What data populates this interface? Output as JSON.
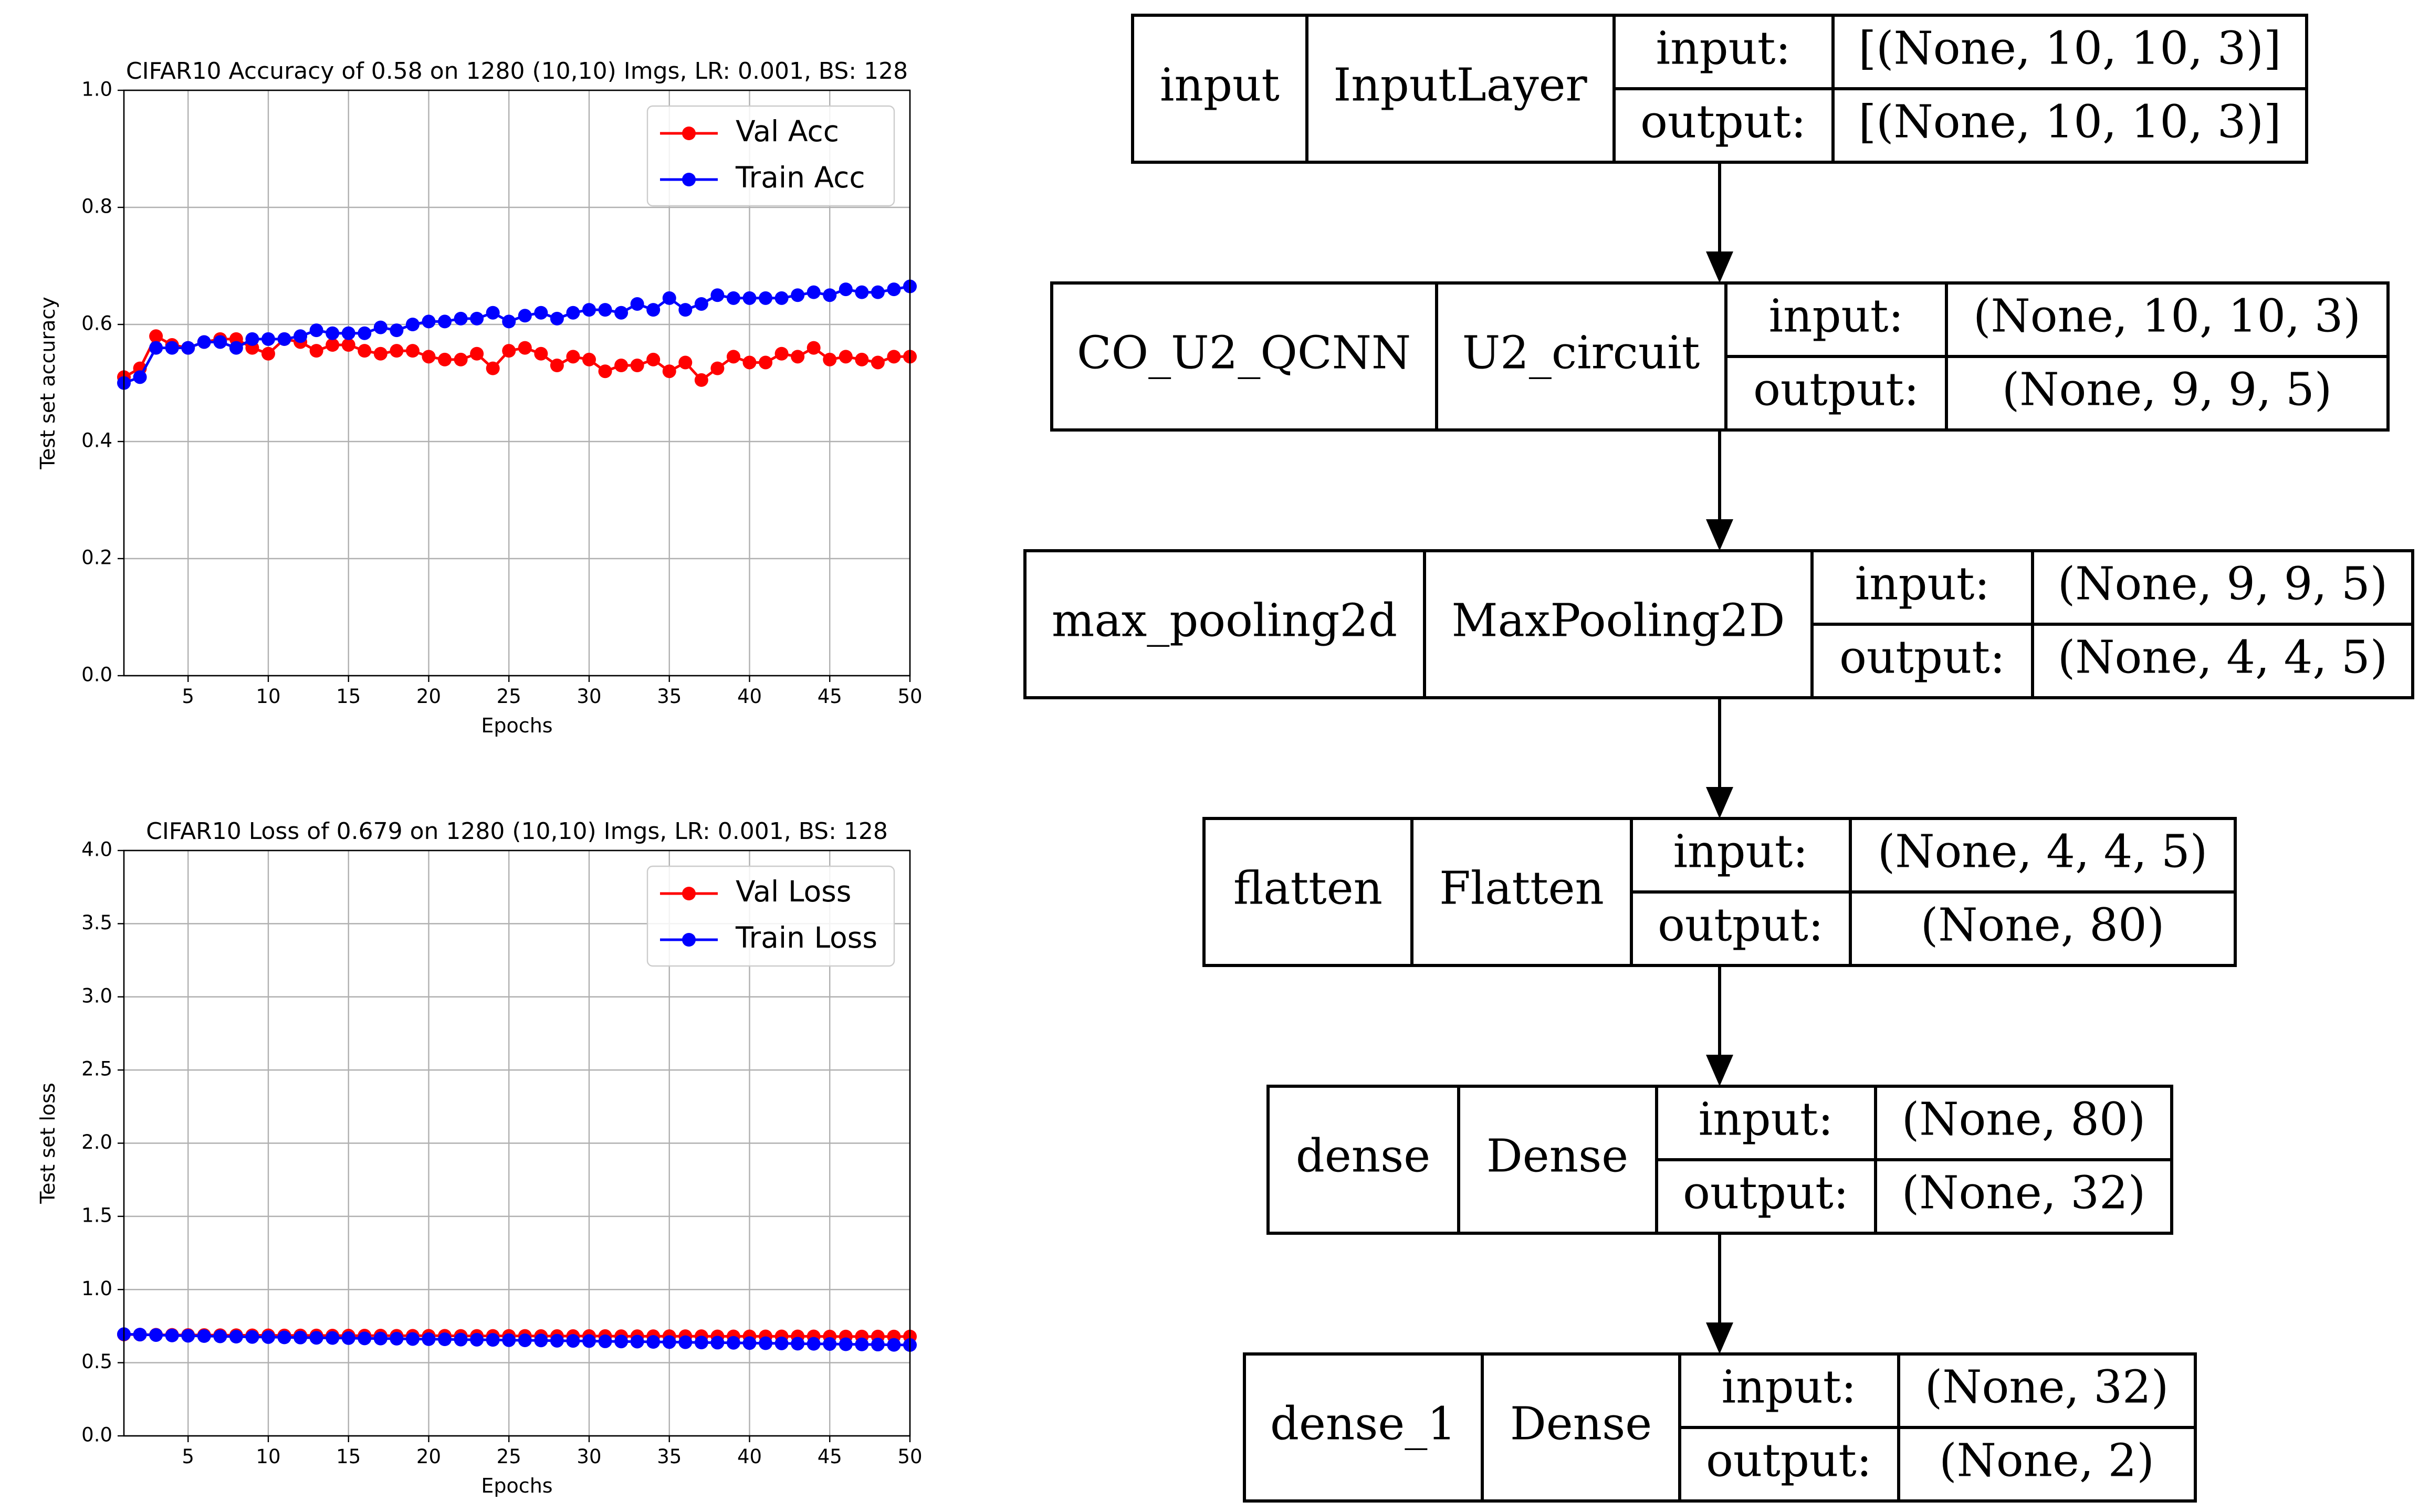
{
  "chart_data": [
    {
      "type": "line",
      "title": "CIFAR10 Accuracy of 0.58 on 1280 (10,10) Imgs, LR: 0.001, BS: 128",
      "xlabel": "Epochs",
      "ylabel": "Test set accuracy",
      "xlim": [
        1,
        50
      ],
      "ylim": [
        0.0,
        1.0
      ],
      "xticks": [
        5,
        10,
        15,
        20,
        25,
        30,
        35,
        40,
        45,
        50
      ],
      "yticks": [
        0.0,
        0.2,
        0.4,
        0.6,
        0.8,
        1.0
      ],
      "ytick_labels": [
        "0.0",
        "0.2",
        "0.4",
        "0.6",
        "0.8",
        "1.0"
      ],
      "grid": true,
      "legend_position": "top-right",
      "x": [
        1,
        2,
        3,
        4,
        5,
        6,
        7,
        8,
        9,
        10,
        11,
        12,
        13,
        14,
        15,
        16,
        17,
        18,
        19,
        20,
        21,
        22,
        23,
        24,
        25,
        26,
        27,
        28,
        29,
        30,
        31,
        32,
        33,
        34,
        35,
        36,
        37,
        38,
        39,
        40,
        41,
        42,
        43,
        44,
        45,
        46,
        47,
        48,
        49,
        50
      ],
      "series": [
        {
          "name": "Val Acc",
          "color": "#ff0000",
          "values": [
            0.51,
            0.525,
            0.58,
            0.565,
            0.56,
            0.57,
            0.575,
            0.575,
            0.56,
            0.55,
            0.575,
            0.57,
            0.555,
            0.565,
            0.565,
            0.555,
            0.55,
            0.555,
            0.555,
            0.545,
            0.54,
            0.54,
            0.55,
            0.525,
            0.555,
            0.56,
            0.55,
            0.53,
            0.545,
            0.54,
            0.52,
            0.53,
            0.53,
            0.54,
            0.52,
            0.535,
            0.505,
            0.525,
            0.545,
            0.535,
            0.535,
            0.55,
            0.545,
            0.56,
            0.54,
            0.545,
            0.54,
            0.535,
            0.545,
            0.545
          ]
        },
        {
          "name": "Train Acc",
          "color": "#0000ff",
          "values": [
            0.5,
            0.51,
            0.56,
            0.56,
            0.56,
            0.57,
            0.57,
            0.56,
            0.575,
            0.575,
            0.575,
            0.58,
            0.59,
            0.585,
            0.585,
            0.585,
            0.595,
            0.59,
            0.6,
            0.605,
            0.605,
            0.61,
            0.61,
            0.62,
            0.605,
            0.615,
            0.62,
            0.61,
            0.62,
            0.625,
            0.625,
            0.62,
            0.635,
            0.625,
            0.645,
            0.625,
            0.635,
            0.65,
            0.645,
            0.645,
            0.645,
            0.645,
            0.65,
            0.655,
            0.65,
            0.66,
            0.655,
            0.655,
            0.66,
            0.665
          ]
        }
      ]
    },
    {
      "type": "line",
      "title": "CIFAR10 Loss of 0.679 on 1280 (10,10) Imgs, LR: 0.001, BS: 128",
      "xlabel": "Epochs",
      "ylabel": "Test set loss",
      "xlim": [
        1,
        50
      ],
      "ylim": [
        0.0,
        4.0
      ],
      "xticks": [
        5,
        10,
        15,
        20,
        25,
        30,
        35,
        40,
        45,
        50
      ],
      "yticks": [
        0.0,
        0.5,
        1.0,
        1.5,
        2.0,
        2.5,
        3.0,
        3.5,
        4.0
      ],
      "ytick_labels": [
        "0.0",
        "0.5",
        "1.0",
        "1.5",
        "2.0",
        "2.5",
        "3.0",
        "3.5",
        "4.0"
      ],
      "grid": true,
      "legend_position": "top-right",
      "x": [
        1,
        2,
        3,
        4,
        5,
        6,
        7,
        8,
        9,
        10,
        11,
        12,
        13,
        14,
        15,
        16,
        17,
        18,
        19,
        20,
        21,
        22,
        23,
        24,
        25,
        26,
        27,
        28,
        29,
        30,
        31,
        32,
        33,
        34,
        35,
        36,
        37,
        38,
        39,
        40,
        41,
        42,
        43,
        44,
        45,
        46,
        47,
        48,
        49,
        50
      ],
      "series": [
        {
          "name": "Val Loss",
          "color": "#ff0000",
          "values": [
            0.693,
            0.692,
            0.691,
            0.69,
            0.689,
            0.689,
            0.688,
            0.688,
            0.687,
            0.687,
            0.686,
            0.686,
            0.686,
            0.685,
            0.685,
            0.685,
            0.685,
            0.684,
            0.684,
            0.684,
            0.684,
            0.683,
            0.683,
            0.683,
            0.683,
            0.683,
            0.682,
            0.682,
            0.682,
            0.682,
            0.682,
            0.681,
            0.681,
            0.681,
            0.681,
            0.681,
            0.681,
            0.68,
            0.68,
            0.68,
            0.68,
            0.68,
            0.68,
            0.68,
            0.679,
            0.679,
            0.679,
            0.679,
            0.679,
            0.679
          ]
        },
        {
          "name": "Train Loss",
          "color": "#0000ff",
          "values": [
            0.695,
            0.692,
            0.689,
            0.686,
            0.684,
            0.682,
            0.68,
            0.678,
            0.676,
            0.675,
            0.673,
            0.672,
            0.67,
            0.669,
            0.668,
            0.666,
            0.665,
            0.664,
            0.662,
            0.661,
            0.66,
            0.658,
            0.657,
            0.656,
            0.654,
            0.653,
            0.652,
            0.65,
            0.649,
            0.648,
            0.646,
            0.645,
            0.644,
            0.642,
            0.641,
            0.64,
            0.638,
            0.637,
            0.636,
            0.634,
            0.633,
            0.632,
            0.63,
            0.629,
            0.628,
            0.626,
            0.625,
            0.624,
            0.622,
            0.621
          ]
        }
      ]
    }
  ],
  "model_diagram": {
    "in_label": "input:",
    "out_label": "output:",
    "layers": [
      {
        "name": "input",
        "type": "InputLayer",
        "input": "[(None, 10, 10, 3)]",
        "output": "[(None, 10, 10, 3)]"
      },
      {
        "name": "CO_U2_QCNN",
        "type": "U2_circuit",
        "input": "(None, 10, 10, 3)",
        "output": "(None, 9, 9, 5)"
      },
      {
        "name": "max_pooling2d",
        "type": "MaxPooling2D",
        "input": "(None, 9, 9, 5)",
        "output": "(None, 4, 4, 5)"
      },
      {
        "name": "flatten",
        "type": "Flatten",
        "input": "(None, 4, 4, 5)",
        "output": "(None, 80)"
      },
      {
        "name": "dense",
        "type": "Dense",
        "input": "(None, 80)",
        "output": "(None, 32)"
      },
      {
        "name": "dense_1",
        "type": "Dense",
        "input": "(None, 32)",
        "output": "(None, 2)"
      }
    ]
  }
}
